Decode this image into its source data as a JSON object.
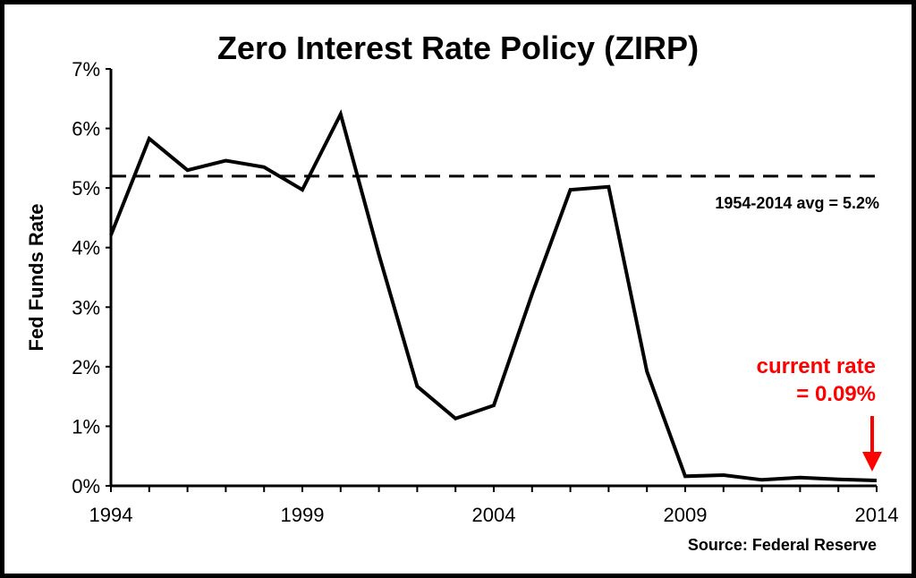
{
  "chart_data": {
    "type": "line",
    "title": "Zero Interest Rate Policy (ZIRP)",
    "ylabel": "Fed Funds Rate",
    "xlabel": "",
    "xlim": [
      1994,
      2014
    ],
    "ylim": [
      0,
      7
    ],
    "x_ticks": [
      1994,
      1999,
      2004,
      2009,
      2014
    ],
    "y_ticks": [
      "0%",
      "1%",
      "2%",
      "3%",
      "4%",
      "5%",
      "6%",
      "7%"
    ],
    "y_tick_values": [
      0,
      1,
      2,
      3,
      4,
      5,
      6,
      7
    ],
    "grid": false,
    "series": [
      {
        "x": [
          1994,
          1995,
          1996,
          1997,
          1998,
          1999,
          2000,
          2001,
          2002,
          2003,
          2004,
          2005,
          2006,
          2007,
          2008,
          2009,
          2010,
          2011,
          2012,
          2013,
          2014
        ],
        "values": [
          4.21,
          5.83,
          5.3,
          5.46,
          5.35,
          4.97,
          6.24,
          3.88,
          1.67,
          1.13,
          1.35,
          3.22,
          4.97,
          5.02,
          1.92,
          0.16,
          0.18,
          0.1,
          0.14,
          0.11,
          0.09
        ],
        "color": "#000000"
      }
    ],
    "reference_line": {
      "value": 5.2,
      "style": "dashed",
      "label": "1954-2014 avg = 5.2%"
    },
    "annotations": [
      {
        "line1": "current rate",
        "line2": "= 0.09%",
        "color": "#ff0000",
        "points_to_x": 2014,
        "points_to_y": 0.09
      }
    ],
    "source": "Source: Federal Reserve"
  }
}
